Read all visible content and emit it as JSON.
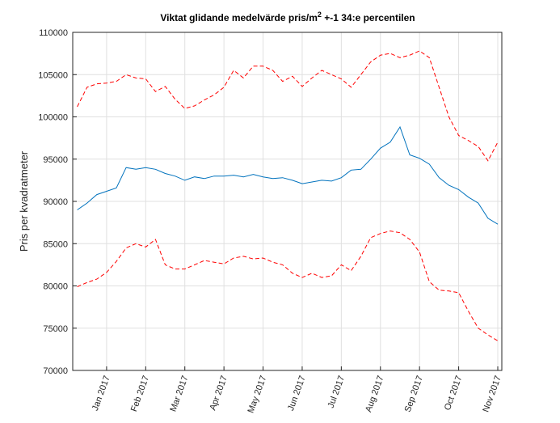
{
  "chart_data": {
    "type": "line",
    "title": [
      "Viktat glidande medelvärde pris/m",
      "2",
      " +-1 34:e percentilen"
    ],
    "ylabel": "Pris per kvadratmeter",
    "categories": [
      null,
      null,
      null,
      "Jan 2017",
      null,
      null,
      null,
      "Feb 2017",
      null,
      null,
      null,
      "Mar 2017",
      null,
      null,
      null,
      "Apr 2017",
      null,
      null,
      null,
      "May 2017",
      null,
      null,
      null,
      "Jun 2017",
      null,
      null,
      null,
      "Jul 2017",
      null,
      null,
      null,
      "Aug 2017",
      null,
      null,
      null,
      "Sep 2017",
      null,
      null,
      null,
      "Oct 2017",
      null,
      null,
      null,
      "Nov 2017"
    ],
    "series": [
      {
        "color": "#ff0000",
        "style": "dashed",
        "values": [
          101200,
          103500,
          103900,
          104000,
          104200,
          105000,
          104600,
          104500,
          103000,
          103600,
          102100,
          101000,
          101300,
          102000,
          102600,
          103500,
          105500,
          104600,
          106000,
          106000,
          105500,
          104200,
          104800,
          103600,
          104600,
          105500,
          105000,
          104500,
          103500,
          105000,
          106500,
          107300,
          107500,
          107000,
          107300,
          107800,
          107000,
          103500,
          100000,
          97800,
          97200,
          96500,
          94800,
          97000
        ]
      },
      {
        "color": "#0072bd",
        "style": "solid",
        "values": [
          89000,
          89800,
          90800,
          91200,
          91600,
          94000,
          93800,
          94000,
          93800,
          93300,
          93000,
          92500,
          92900,
          92700,
          93000,
          93000,
          93100,
          92900,
          93200,
          92900,
          92700,
          92800,
          92500,
          92100,
          92300,
          92500,
          92400,
          92800,
          93700,
          93800,
          95000,
          96300,
          97000,
          98800,
          95500,
          95100,
          94400,
          92800,
          91900,
          91400,
          90500,
          89800,
          88000,
          87300
        ]
      },
      {
        "color": "#ff0000",
        "style": "dashed",
        "values": [
          79900,
          80400,
          80800,
          81600,
          82900,
          84500,
          85000,
          84600,
          85500,
          82500,
          82000,
          82000,
          82500,
          83000,
          82800,
          82600,
          83300,
          83500,
          83200,
          83300,
          82800,
          82500,
          81500,
          81000,
          81500,
          81000,
          81200,
          82500,
          81800,
          83500,
          85700,
          86200,
          86500,
          86300,
          85500,
          84000,
          80500,
          79500,
          79400,
          79200,
          77000,
          75000,
          74200,
          73500
        ]
      }
    ],
    "ylim": [
      70000,
      110000
    ],
    "yticks": [
      70000,
      75000,
      80000,
      85000,
      90000,
      95000,
      100000,
      105000,
      110000
    ],
    "grid": true
  }
}
